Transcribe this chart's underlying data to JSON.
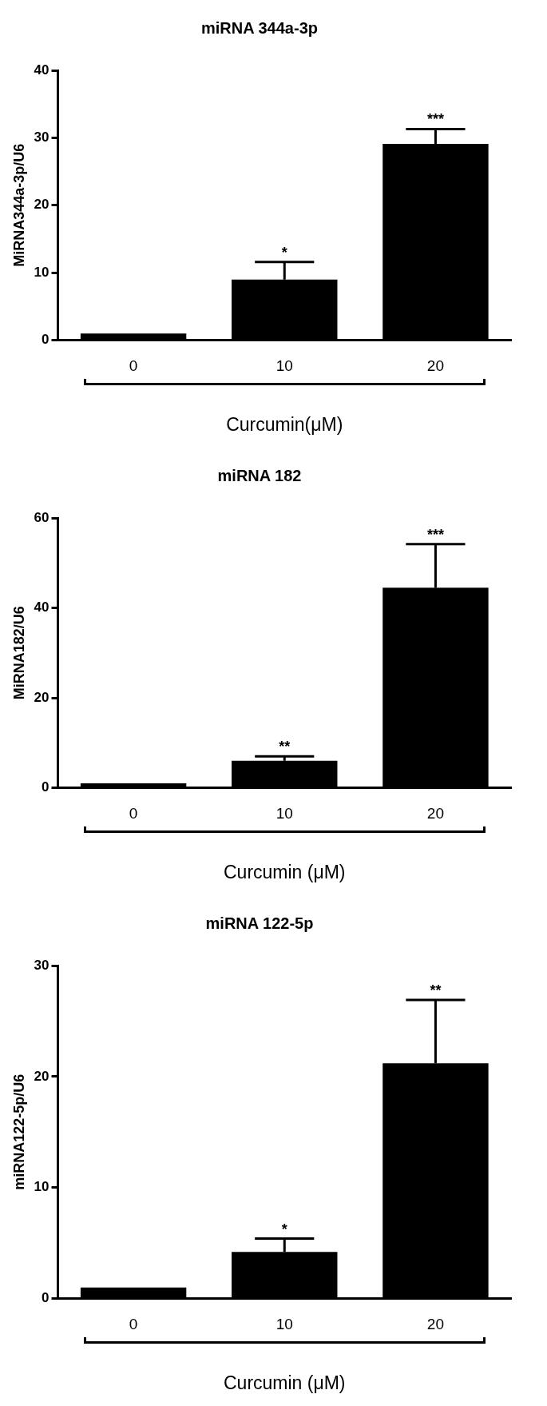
{
  "chart_data": [
    {
      "type": "bar",
      "title": "miRNA 344a-3p",
      "xlabel": "Curcumin(μM)",
      "ylabel": "MiRNA344a-3p/U6",
      "categories": [
        "0",
        "10",
        "20"
      ],
      "series": [
        {
          "color": "#000000",
          "values": [
            1,
            9,
            29.1
          ],
          "errors": [
            null,
            2.6,
            2.2
          ]
        }
      ],
      "ylim": [
        0,
        40
      ],
      "yticks": [
        0,
        10,
        20,
        30,
        40
      ],
      "grid": false,
      "legend": false,
      "annotations": [
        {
          "text": "*",
          "x": "10",
          "y": 11.6
        },
        {
          "text": "***",
          "x": "20",
          "y": 31.3
        }
      ]
    },
    {
      "type": "bar",
      "title": "miRNA 182",
      "xlabel": "Curcumin (μM)",
      "ylabel": "MiRNA182/U6",
      "categories": [
        "0",
        "10",
        "20"
      ],
      "series": [
        {
          "color": "#000000",
          "values": [
            1,
            6,
            44.5
          ],
          "errors": [
            null,
            1,
            9.7
          ]
        }
      ],
      "ylim": [
        0,
        60
      ],
      "yticks": [
        0,
        20,
        40,
        60
      ],
      "grid": false,
      "legend": false,
      "annotations": [
        {
          "text": "**",
          "x": "10",
          "y": 7
        },
        {
          "text": "***",
          "x": "20",
          "y": 54.2
        }
      ]
    },
    {
      "type": "bar",
      "title": "miRNA 122-5p",
      "xlabel": "Curcumin (μM)",
      "ylabel": "miRNA122-5p/U6",
      "categories": [
        "0",
        "10",
        "20"
      ],
      "series": [
        {
          "color": "#000000",
          "values": [
            1,
            4.2,
            21.2
          ],
          "errors": [
            null,
            1.2,
            5.7
          ]
        }
      ],
      "ylim": [
        0,
        30
      ],
      "yticks": [
        0,
        10,
        20,
        30
      ],
      "grid": false,
      "legend": false,
      "annotations": [
        {
          "text": "*",
          "x": "10",
          "y": 5.4
        },
        {
          "text": "**",
          "x": "20",
          "y": 26.9
        }
      ]
    }
  ]
}
